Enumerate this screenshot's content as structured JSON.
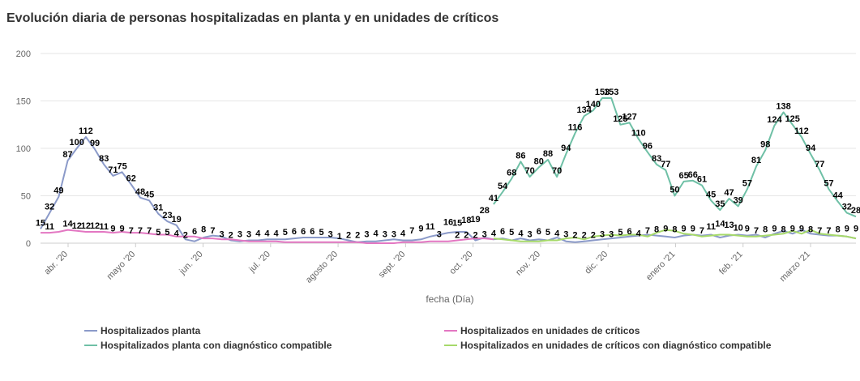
{
  "chart_data": {
    "type": "line",
    "title": "Evolución diaria de personas hospitalizadas en planta y en unidades de críticos",
    "xlabel": "fecha (Día)",
    "ylabel": "",
    "ylim": [
      0,
      200
    ],
    "yticks": [
      0,
      50,
      100,
      150,
      200
    ],
    "xticks": [
      "abr. '20",
      "mayo '20",
      "jun. '20",
      "jul. '20",
      "agosto '20",
      "sept. '20",
      "oct. '20",
      "nov. '20",
      "dic. '20",
      "enero '21",
      "feb. '21",
      "marzo '21"
    ],
    "grid": true,
    "legend_position": "bottom",
    "series": [
      {
        "name": "Hospitalizados planta",
        "color": "#8b9ac9",
        "x": [
          0,
          1,
          2,
          3,
          4,
          5,
          6,
          7,
          8,
          9,
          10,
          11,
          12,
          13,
          14,
          15,
          16,
          17,
          18,
          19,
          20,
          21,
          22,
          23,
          24,
          25,
          26,
          27,
          28,
          29,
          30,
          31,
          32,
          33,
          34,
          35,
          36,
          37,
          38,
          39,
          40,
          41,
          42,
          43,
          44,
          45,
          46,
          47,
          48,
          49,
          50,
          51,
          52,
          53,
          54,
          55,
          56,
          57,
          58,
          59,
          60,
          61,
          62,
          63,
          64,
          65,
          66,
          67,
          68,
          69,
          70,
          71,
          72,
          73,
          74,
          75,
          76,
          77,
          78,
          79,
          80,
          81,
          82,
          83,
          84,
          85,
          86,
          87,
          88,
          89,
          90
        ],
        "values": [
          15,
          32,
          49,
          87,
          100,
          112,
          99,
          83,
          71,
          75,
          62,
          48,
          45,
          31,
          23,
          19,
          4,
          2,
          6,
          8,
          7,
          3,
          2,
          3,
          3,
          4,
          4,
          4,
          5,
          6,
          6,
          6,
          6,
          5,
          3,
          1,
          2,
          2,
          3,
          4,
          3,
          3,
          4,
          7,
          9,
          11,
          12,
          12,
          3,
          6,
          4,
          5,
          3,
          5,
          3,
          4,
          3,
          6,
          2,
          1,
          2,
          3,
          4,
          5,
          6,
          7,
          8,
          9,
          8,
          7,
          6,
          8,
          9,
          8,
          9,
          6,
          8,
          9,
          8,
          9,
          6,
          10,
          13,
          10,
          14,
          10,
          9,
          8,
          8,
          7,
          5
        ]
      },
      {
        "name": "Hospitalizados en unidades de críticos",
        "color": "#e377c2",
        "x": [
          0,
          1,
          2,
          3,
          4,
          5,
          6,
          7,
          8,
          9,
          10,
          11,
          12,
          13,
          14,
          15,
          16,
          17,
          18,
          19,
          20,
          21,
          22,
          23,
          24,
          25,
          26,
          27,
          28,
          29,
          30,
          31,
          32,
          33,
          34,
          35,
          36,
          37,
          38,
          39,
          40,
          41,
          42,
          43,
          44,
          45,
          46,
          47,
          48,
          49,
          50
        ],
        "values": [
          11,
          11,
          12,
          14,
          13,
          12,
          12,
          12,
          11,
          12,
          11,
          11,
          10,
          9,
          9,
          7,
          7,
          7,
          5,
          5,
          4,
          4,
          3,
          2,
          2,
          2,
          2,
          1,
          1,
          1,
          1,
          1,
          1,
          1,
          1,
          1,
          0,
          0,
          0,
          0,
          1,
          1,
          1,
          2,
          2,
          2,
          3,
          4,
          5,
          5,
          4
        ]
      },
      {
        "name": "Hospitalizados planta con diagnóstico compatible",
        "color": "#6fc0a6",
        "x": [
          50,
          51,
          52,
          53,
          54,
          55,
          56,
          57,
          58,
          59,
          60,
          61,
          62,
          63,
          64,
          65,
          66,
          67,
          68,
          69,
          70,
          71,
          72,
          73,
          74,
          75,
          76,
          77,
          78,
          79,
          80,
          81,
          82,
          83,
          84,
          85,
          86,
          87,
          88,
          89,
          90
        ],
        "values": [
          41,
          54,
          68,
          86,
          70,
          80,
          88,
          70,
          94,
          116,
          134,
          140,
          153,
          153,
          125,
          127,
          110,
          96,
          83,
          77,
          50,
          65,
          66,
          61,
          45,
          35,
          47,
          39,
          57,
          81,
          98,
          124,
          138,
          125,
          112,
          94,
          77,
          57,
          44,
          32,
          28
        ]
      },
      {
        "name": "Hospitalizados en unidades de críticos con diagnóstico compatible",
        "color": "#a6d96a",
        "x": [
          50,
          51,
          52,
          53,
          54,
          55,
          56,
          57,
          58,
          59,
          60,
          61,
          62,
          63,
          64,
          65,
          66,
          67,
          68,
          69,
          70,
          71,
          72,
          73,
          74,
          75,
          76,
          77,
          78,
          79,
          80,
          81,
          82,
          83,
          84,
          85,
          86,
          87,
          88,
          89,
          90
        ],
        "values": [
          5,
          4,
          3,
          2,
          2,
          2,
          3,
          3,
          5,
          6,
          4,
          7,
          8,
          9,
          8,
          9,
          9,
          7,
          11,
          14,
          13,
          10,
          9,
          7,
          8,
          9,
          9,
          8,
          7,
          7,
          8,
          9,
          10,
          13,
          10,
          14,
          10,
          9,
          8,
          7,
          5
        ]
      }
    ],
    "data_labels": [
      {
        "t": "15",
        "x": 0,
        "y": 15
      },
      {
        "t": "32",
        "x": 1,
        "y": 32
      },
      {
        "t": "49",
        "x": 2,
        "y": 49
      },
      {
        "t": "87",
        "x": 3,
        "y": 87
      },
      {
        "t": "100",
        "x": 4,
        "y": 100
      },
      {
        "t": "112",
        "x": 5,
        "y": 112
      },
      {
        "t": "99",
        "x": 6,
        "y": 99
      },
      {
        "t": "83",
        "x": 7,
        "y": 83
      },
      {
        "t": "71",
        "x": 8,
        "y": 71
      },
      {
        "t": "75",
        "x": 9,
        "y": 75
      },
      {
        "t": "62",
        "x": 10,
        "y": 62
      },
      {
        "t": "48",
        "x": 11,
        "y": 48
      },
      {
        "t": "45",
        "x": 12,
        "y": 45
      },
      {
        "t": "31",
        "x": 13,
        "y": 31
      },
      {
        "t": "23",
        "x": 14,
        "y": 23
      },
      {
        "t": "19",
        "x": 15,
        "y": 19
      },
      {
        "t": "11",
        "x": 1,
        "y": 11
      },
      {
        "t": "14",
        "x": 3,
        "y": 14
      },
      {
        "t": "12",
        "x": 4,
        "y": 12
      },
      {
        "t": "12",
        "x": 5,
        "y": 12
      },
      {
        "t": "12",
        "x": 6,
        "y": 12
      },
      {
        "t": "11",
        "x": 7,
        "y": 11
      },
      {
        "t": "9",
        "x": 8,
        "y": 9
      },
      {
        "t": "9",
        "x": 9,
        "y": 9
      },
      {
        "t": "7",
        "x": 10,
        "y": 7
      },
      {
        "t": "7",
        "x": 11,
        "y": 7
      },
      {
        "t": "7",
        "x": 12,
        "y": 7
      },
      {
        "t": "5",
        "x": 13,
        "y": 5
      },
      {
        "t": "5",
        "x": 14,
        "y": 5
      },
      {
        "t": "4",
        "x": 15,
        "y": 4
      },
      {
        "t": "2",
        "x": 16,
        "y": 2
      },
      {
        "t": "6",
        "x": 17,
        "y": 6
      },
      {
        "t": "8",
        "x": 18,
        "y": 8
      },
      {
        "t": "7",
        "x": 19,
        "y": 7
      },
      {
        "t": "3",
        "x": 20,
        "y": 3
      },
      {
        "t": "2",
        "x": 21,
        "y": 2
      },
      {
        "t": "3",
        "x": 22,
        "y": 3
      },
      {
        "t": "3",
        "x": 23,
        "y": 3
      },
      {
        "t": "4",
        "x": 24,
        "y": 4
      },
      {
        "t": "4",
        "x": 25,
        "y": 4
      },
      {
        "t": "4",
        "x": 26,
        "y": 4
      },
      {
        "t": "5",
        "x": 27,
        "y": 5
      },
      {
        "t": "6",
        "x": 28,
        "y": 6
      },
      {
        "t": "6",
        "x": 29,
        "y": 6
      },
      {
        "t": "6",
        "x": 30,
        "y": 6
      },
      {
        "t": "5",
        "x": 31,
        "y": 5
      },
      {
        "t": "3",
        "x": 32,
        "y": 3
      },
      {
        "t": "1",
        "x": 33,
        "y": 1
      },
      {
        "t": "2",
        "x": 34,
        "y": 2
      },
      {
        "t": "2",
        "x": 35,
        "y": 2
      },
      {
        "t": "3",
        "x": 36,
        "y": 3
      },
      {
        "t": "4",
        "x": 37,
        "y": 4
      },
      {
        "t": "3",
        "x": 38,
        "y": 3
      },
      {
        "t": "3",
        "x": 39,
        "y": 3
      },
      {
        "t": "4",
        "x": 40,
        "y": 4
      },
      {
        "t": "7",
        "x": 41,
        "y": 7
      },
      {
        "t": "9",
        "x": 42,
        "y": 9
      },
      {
        "t": "11",
        "x": 43,
        "y": 11
      },
      {
        "t": "3",
        "x": 44,
        "y": 3
      },
      {
        "t": "16",
        "x": 45,
        "y": 16
      },
      {
        "t": "15",
        "x": 46,
        "y": 15
      },
      {
        "t": "18",
        "x": 47,
        "y": 18
      },
      {
        "t": "19",
        "x": 48,
        "y": 19
      },
      {
        "t": "28",
        "x": 49,
        "y": 28
      },
      {
        "t": "41",
        "x": 50,
        "y": 41
      },
      {
        "t": "54",
        "x": 51,
        "y": 54
      },
      {
        "t": "68",
        "x": 52,
        "y": 68
      },
      {
        "t": "86",
        "x": 53,
        "y": 86
      },
      {
        "t": "70",
        "x": 54,
        "y": 70
      },
      {
        "t": "80",
        "x": 55,
        "y": 80
      },
      {
        "t": "88",
        "x": 56,
        "y": 88
      },
      {
        "t": "70",
        "x": 57,
        "y": 70
      },
      {
        "t": "94",
        "x": 58,
        "y": 94
      },
      {
        "t": "116",
        "x": 59,
        "y": 116
      },
      {
        "t": "134",
        "x": 60,
        "y": 134
      },
      {
        "t": "140",
        "x": 61,
        "y": 140
      },
      {
        "t": "153",
        "x": 62,
        "y": 153
      },
      {
        "t": "153",
        "x": 63,
        "y": 153
      },
      {
        "t": "125",
        "x": 64,
        "y": 125
      },
      {
        "t": "127",
        "x": 65,
        "y": 127
      },
      {
        "t": "110",
        "x": 66,
        "y": 110
      },
      {
        "t": "96",
        "x": 67,
        "y": 96
      },
      {
        "t": "83",
        "x": 68,
        "y": 83
      },
      {
        "t": "77",
        "x": 69,
        "y": 77
      },
      {
        "t": "50",
        "x": 70,
        "y": 50
      },
      {
        "t": "65",
        "x": 71,
        "y": 65
      },
      {
        "t": "66",
        "x": 72,
        "y": 66
      },
      {
        "t": "61",
        "x": 73,
        "y": 61
      },
      {
        "t": "45",
        "x": 74,
        "y": 45
      },
      {
        "t": "35",
        "x": 75,
        "y": 35
      },
      {
        "t": "47",
        "x": 76,
        "y": 47
      },
      {
        "t": "39",
        "x": 77,
        "y": 39
      },
      {
        "t": "57",
        "x": 78,
        "y": 57
      },
      {
        "t": "81",
        "x": 79,
        "y": 81
      },
      {
        "t": "98",
        "x": 80,
        "y": 98
      },
      {
        "t": "124",
        "x": 81,
        "y": 124
      },
      {
        "t": "138",
        "x": 82,
        "y": 138
      },
      {
        "t": "125",
        "x": 83,
        "y": 125
      },
      {
        "t": "112",
        "x": 84,
        "y": 112
      },
      {
        "t": "94",
        "x": 85,
        "y": 94
      },
      {
        "t": "77",
        "x": 86,
        "y": 77
      },
      {
        "t": "57",
        "x": 87,
        "y": 57
      },
      {
        "t": "44",
        "x": 88,
        "y": 44
      },
      {
        "t": "32",
        "x": 89,
        "y": 32
      },
      {
        "t": "28",
        "x": 90,
        "y": 28
      },
      {
        "t": "2",
        "x": 46,
        "y": 2
      },
      {
        "t": "2",
        "x": 47,
        "y": 2
      },
      {
        "t": "2",
        "x": 48,
        "y": 2
      },
      {
        "t": "3",
        "x": 49,
        "y": 3
      },
      {
        "t": "4",
        "x": 50,
        "y": 4
      },
      {
        "t": "6",
        "x": 51,
        "y": 6
      },
      {
        "t": "5",
        "x": 52,
        "y": 5
      },
      {
        "t": "4",
        "x": 53,
        "y": 4
      },
      {
        "t": "3",
        "x": 54,
        "y": 3
      },
      {
        "t": "6",
        "x": 55,
        "y": 6
      },
      {
        "t": "5",
        "x": 56,
        "y": 5
      },
      {
        "t": "4",
        "x": 57,
        "y": 4
      },
      {
        "t": "3",
        "x": 58,
        "y": 3
      },
      {
        "t": "2",
        "x": 59,
        "y": 2
      },
      {
        "t": "2",
        "x": 60,
        "y": 2
      },
      {
        "t": "2",
        "x": 61,
        "y": 2
      },
      {
        "t": "3",
        "x": 62,
        "y": 3
      },
      {
        "t": "3",
        "x": 63,
        "y": 3
      },
      {
        "t": "5",
        "x": 64,
        "y": 5
      },
      {
        "t": "6",
        "x": 65,
        "y": 6
      },
      {
        "t": "4",
        "x": 66,
        "y": 4
      },
      {
        "t": "7",
        "x": 67,
        "y": 7
      },
      {
        "t": "8",
        "x": 68,
        "y": 8
      },
      {
        "t": "9",
        "x": 69,
        "y": 9
      },
      {
        "t": "8",
        "x": 70,
        "y": 8
      },
      {
        "t": "9",
        "x": 71,
        "y": 9
      },
      {
        "t": "9",
        "x": 72,
        "y": 9
      },
      {
        "t": "7",
        "x": 73,
        "y": 7
      },
      {
        "t": "11",
        "x": 74,
        "y": 11
      },
      {
        "t": "14",
        "x": 75,
        "y": 14
      },
      {
        "t": "13",
        "x": 76,
        "y": 13
      },
      {
        "t": "10",
        "x": 77,
        "y": 10
      },
      {
        "t": "9",
        "x": 78,
        "y": 9
      },
      {
        "t": "7",
        "x": 79,
        "y": 7
      },
      {
        "t": "8",
        "x": 80,
        "y": 8
      },
      {
        "t": "9",
        "x": 81,
        "y": 9
      },
      {
        "t": "8",
        "x": 82,
        "y": 8
      },
      {
        "t": "9",
        "x": 83,
        "y": 9
      },
      {
        "t": "9",
        "x": 84,
        "y": 9
      },
      {
        "t": "8",
        "x": 85,
        "y": 8
      },
      {
        "t": "7",
        "x": 86,
        "y": 7
      },
      {
        "t": "7",
        "x": 87,
        "y": 7
      },
      {
        "t": "8",
        "x": 88,
        "y": 8
      },
      {
        "t": "9",
        "x": 89,
        "y": 9
      },
      {
        "t": "9",
        "x": 90,
        "y": 9
      }
    ]
  }
}
